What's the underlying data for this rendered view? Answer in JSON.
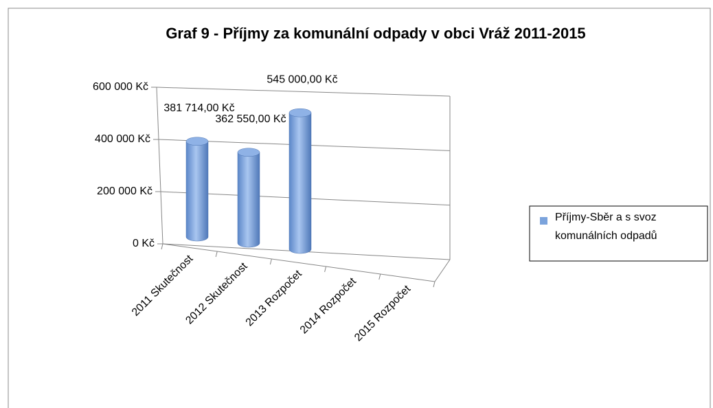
{
  "chart_data": {
    "type": "bar3d",
    "title": "Graf 9 - Příjmy za komunální  odpady v obci Vráž 2011-2015",
    "categories": [
      "2011 Skutečnost",
      "2012 Skutečnost",
      "2013 Rozpočet",
      "2014 Rozpočet",
      "2015 Rozpočet"
    ],
    "series": [
      {
        "name": "Příjmy-Sběr a s svoz komunálních odpadů",
        "color": "#7ba3dc",
        "values": [
          381714,
          362550,
          545000,
          null,
          null
        ],
        "value_labels": [
          "381 714,00 Kč",
          "362 550,00 Kč",
          "545 000,00 Kč",
          null,
          null
        ]
      }
    ],
    "ylim": [
      0,
      600000
    ],
    "yticks": [
      {
        "value": 0,
        "label": "0 Kč"
      },
      {
        "value": 200000,
        "label": "200 000 Kč"
      },
      {
        "value": 400000,
        "label": "400 000 Kč"
      },
      {
        "value": 600000,
        "label": "600 000 Kč"
      }
    ],
    "grid": true,
    "legend": "right"
  }
}
